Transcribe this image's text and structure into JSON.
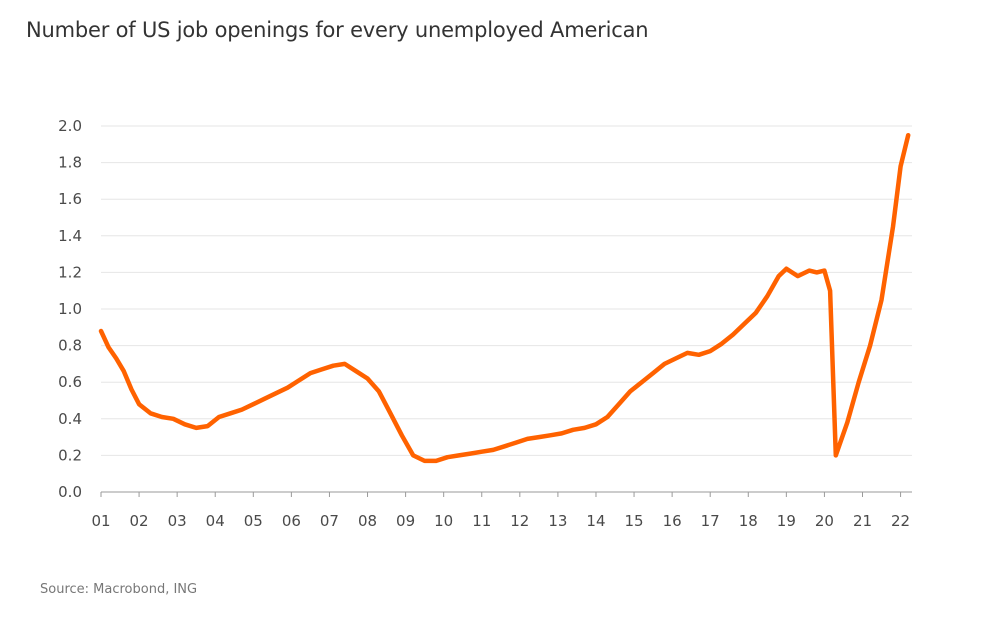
{
  "title": "Number of US job openings for every unemployed American",
  "source": "Source: Macrobond, ING",
  "chart_data": {
    "type": "line",
    "title": "Number of US job openings for every unemployed American",
    "xlabel": "",
    "ylabel": "",
    "xlim": [
      2001,
      2022.3
    ],
    "ylim": [
      0,
      2.0
    ],
    "grid": true,
    "legend": "none",
    "xticks": [
      "01",
      "02",
      "03",
      "04",
      "05",
      "06",
      "07",
      "08",
      "09",
      "10",
      "11",
      "12",
      "13",
      "14",
      "15",
      "16",
      "17",
      "18",
      "19",
      "20",
      "21",
      "22"
    ],
    "yticks": [
      "0.0",
      "0.2",
      "0.4",
      "0.6",
      "0.8",
      "1.0",
      "1.2",
      "1.4",
      "1.6",
      "1.8",
      "2.0"
    ],
    "colors": {
      "line": "#FF6200",
      "grid": "#e6e6e6",
      "axis": "#9a9a9a"
    },
    "series": [
      {
        "x": [
          2001.0,
          2001.2,
          2001.4,
          2001.6,
          2001.8,
          2002.0,
          2002.3,
          2002.6,
          2002.9,
          2003.2,
          2003.5,
          2003.8,
          2004.1,
          2004.4,
          2004.7,
          2005.0,
          2005.3,
          2005.6,
          2005.9,
          2006.2,
          2006.5,
          2006.8,
          2007.1,
          2007.4,
          2007.7,
          2008.0,
          2008.3,
          2008.6,
          2008.9,
          2009.2,
          2009.5,
          2009.8,
          2010.1,
          2010.4,
          2010.7,
          2011.0,
          2011.3,
          2011.6,
          2011.9,
          2012.2,
          2012.5,
          2012.8,
          2013.1,
          2013.4,
          2013.7,
          2014.0,
          2014.3,
          2014.6,
          2014.9,
          2015.2,
          2015.5,
          2015.8,
          2016.1,
          2016.4,
          2016.7,
          2017.0,
          2017.3,
          2017.6,
          2017.9,
          2018.2,
          2018.5,
          2018.8,
          2019.0,
          2019.3,
          2019.6,
          2019.8,
          2020.0,
          2020.15,
          2020.3,
          2020.6,
          2020.9,
          2021.2,
          2021.5,
          2021.8,
          2022.0,
          2022.2
        ],
        "values": [
          0.88,
          0.79,
          0.73,
          0.66,
          0.56,
          0.48,
          0.43,
          0.41,
          0.4,
          0.37,
          0.35,
          0.36,
          0.41,
          0.43,
          0.45,
          0.48,
          0.51,
          0.54,
          0.57,
          0.61,
          0.65,
          0.67,
          0.69,
          0.7,
          0.66,
          0.62,
          0.55,
          0.43,
          0.31,
          0.2,
          0.17,
          0.17,
          0.19,
          0.2,
          0.21,
          0.22,
          0.23,
          0.25,
          0.27,
          0.29,
          0.3,
          0.31,
          0.32,
          0.34,
          0.35,
          0.37,
          0.41,
          0.48,
          0.55,
          0.6,
          0.65,
          0.7,
          0.73,
          0.76,
          0.75,
          0.77,
          0.81,
          0.86,
          0.92,
          0.98,
          1.07,
          1.18,
          1.22,
          1.18,
          1.21,
          1.2,
          1.21,
          1.1,
          0.2,
          0.38,
          0.6,
          0.8,
          1.05,
          1.45,
          1.78,
          1.95
        ]
      }
    ]
  }
}
